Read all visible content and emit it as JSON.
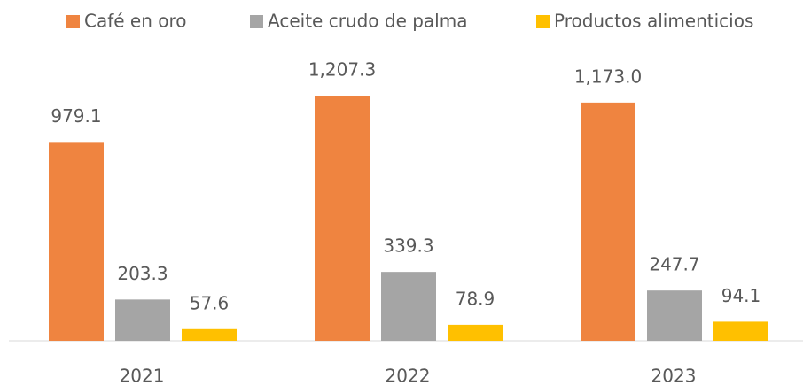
{
  "chart_data": {
    "type": "bar",
    "categories": [
      "2021",
      "2022",
      "2023"
    ],
    "series": [
      {
        "name": "Café en oro",
        "color": "#ef8440",
        "values": [
          979.1,
          1207.3,
          1173.0
        ],
        "value_labels": [
          "979.1",
          "1,207.3",
          "1,173.0"
        ]
      },
      {
        "name": "Aceite crudo de palma",
        "color": "#a5a5a5",
        "values": [
          203.3,
          339.3,
          247.7
        ]
      },
      {
        "name": "Productos alimenticios",
        "color": "#ffc000",
        "values": [
          57.6,
          78.9,
          94.1
        ]
      }
    ]
  }
}
